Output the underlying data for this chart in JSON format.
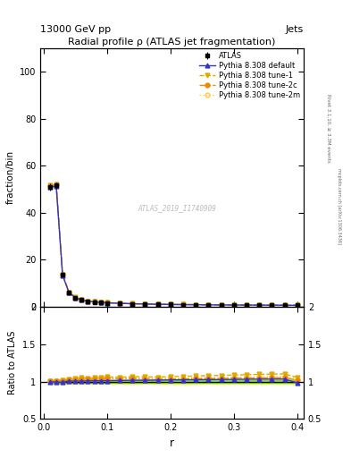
{
  "title": "Radial profile ρ (ATLAS jet fragmentation)",
  "header_left": "13000 GeV pp",
  "header_right": "Jets",
  "ylabel_main": "fraction/bin",
  "ylabel_ratio": "Ratio to ATLAS",
  "xlabel": "r",
  "rivet_text": "Rivet 3.1.10, ≥ 3.3M events",
  "mcplots_text": "mcplots.cern.ch [arXiv:1306.3436]",
  "watermark": "ATLAS_2019_I1740909",
  "ylim_main": [
    0,
    110
  ],
  "ylim_ratio": [
    0.5,
    2.0
  ],
  "r_values": [
    0.01,
    0.02,
    0.03,
    0.04,
    0.05,
    0.06,
    0.07,
    0.08,
    0.09,
    0.1,
    0.12,
    0.14,
    0.16,
    0.18,
    0.2,
    0.22,
    0.24,
    0.26,
    0.28,
    0.3,
    0.32,
    0.34,
    0.36,
    0.38,
    0.4
  ],
  "atlas_data": [
    51.0,
    51.5,
    13.5,
    6.0,
    3.8,
    2.8,
    2.3,
    2.0,
    1.8,
    1.6,
    1.4,
    1.2,
    1.1,
    1.0,
    0.9,
    0.85,
    0.8,
    0.75,
    0.72,
    0.68,
    0.65,
    0.62,
    0.6,
    0.58,
    0.55
  ],
  "atlas_errors": [
    1.5,
    1.5,
    0.4,
    0.2,
    0.12,
    0.08,
    0.07,
    0.06,
    0.05,
    0.05,
    0.04,
    0.04,
    0.03,
    0.03,
    0.03,
    0.03,
    0.025,
    0.025,
    0.022,
    0.02,
    0.02,
    0.019,
    0.018,
    0.018,
    0.017
  ],
  "pythia_default": [
    50.8,
    51.2,
    13.4,
    6.05,
    3.82,
    2.82,
    2.32,
    2.02,
    1.82,
    1.62,
    1.42,
    1.22,
    1.12,
    1.02,
    0.92,
    0.87,
    0.82,
    0.77,
    0.74,
    0.7,
    0.67,
    0.64,
    0.62,
    0.6,
    0.54
  ],
  "pythia_tune1": [
    51.5,
    52.0,
    13.8,
    6.2,
    3.95,
    2.95,
    2.4,
    2.1,
    1.9,
    1.7,
    1.48,
    1.28,
    1.17,
    1.06,
    0.96,
    0.91,
    0.86,
    0.81,
    0.78,
    0.74,
    0.71,
    0.68,
    0.66,
    0.64,
    0.58
  ],
  "pythia_tune2c": [
    51.2,
    51.8,
    13.6,
    6.1,
    3.88,
    2.88,
    2.36,
    2.06,
    1.86,
    1.66,
    1.45,
    1.25,
    1.14,
    1.03,
    0.93,
    0.88,
    0.83,
    0.78,
    0.75,
    0.71,
    0.68,
    0.65,
    0.63,
    0.61,
    0.56
  ],
  "pythia_tune2m": [
    51.3,
    51.9,
    13.7,
    6.15,
    3.9,
    2.9,
    2.38,
    2.08,
    1.88,
    1.68,
    1.46,
    1.26,
    1.15,
    1.04,
    0.94,
    0.89,
    0.84,
    0.79,
    0.76,
    0.72,
    0.69,
    0.66,
    0.64,
    0.62,
    0.57
  ],
  "ratio_default": [
    0.996,
    0.994,
    0.993,
    1.008,
    1.005,
    1.007,
    1.009,
    1.01,
    1.011,
    1.012,
    1.014,
    1.017,
    1.018,
    1.02,
    1.022,
    1.024,
    1.025,
    1.027,
    1.028,
    1.029,
    1.031,
    1.033,
    1.033,
    1.034,
    0.982
  ],
  "ratio_tune1": [
    1.01,
    1.01,
    1.022,
    1.033,
    1.039,
    1.054,
    1.043,
    1.05,
    1.056,
    1.063,
    1.057,
    1.067,
    1.064,
    1.06,
    1.067,
    1.071,
    1.075,
    1.08,
    1.083,
    1.088,
    1.092,
    1.097,
    1.1,
    1.103,
    1.055
  ],
  "ratio_tune2c": [
    1.004,
    1.006,
    1.007,
    1.017,
    1.021,
    1.029,
    1.026,
    1.03,
    1.033,
    1.038,
    1.036,
    1.042,
    1.036,
    1.03,
    1.033,
    1.035,
    1.038,
    1.04,
    1.042,
    1.044,
    1.046,
    1.048,
    1.05,
    1.052,
    1.018
  ],
  "ratio_tune2m": [
    1.006,
    1.008,
    1.015,
    1.025,
    1.026,
    1.036,
    1.035,
    1.04,
    1.044,
    1.05,
    1.043,
    1.05,
    1.045,
    1.04,
    1.044,
    1.047,
    1.05,
    1.053,
    1.056,
    1.059,
    1.062,
    1.065,
    1.067,
    1.069,
    1.036
  ],
  "atlas_ratio_err": [
    0.03,
    0.029,
    0.03,
    0.033,
    0.032,
    0.029,
    0.03,
    0.03,
    0.028,
    0.031,
    0.029,
    0.033,
    0.027,
    0.03,
    0.033,
    0.035,
    0.031,
    0.028,
    0.031,
    0.029,
    0.031,
    0.031,
    0.03,
    0.031,
    0.031
  ],
  "color_default": "#3333cc",
  "color_tune1": "#ddaa00",
  "color_tune2c": "#ee8800",
  "color_tune2m": "#ffcc44",
  "color_atlas": "#000000",
  "color_green_band": "#44cc44",
  "color_yellow_band": "#ffee44",
  "bg_color": "#ffffff"
}
